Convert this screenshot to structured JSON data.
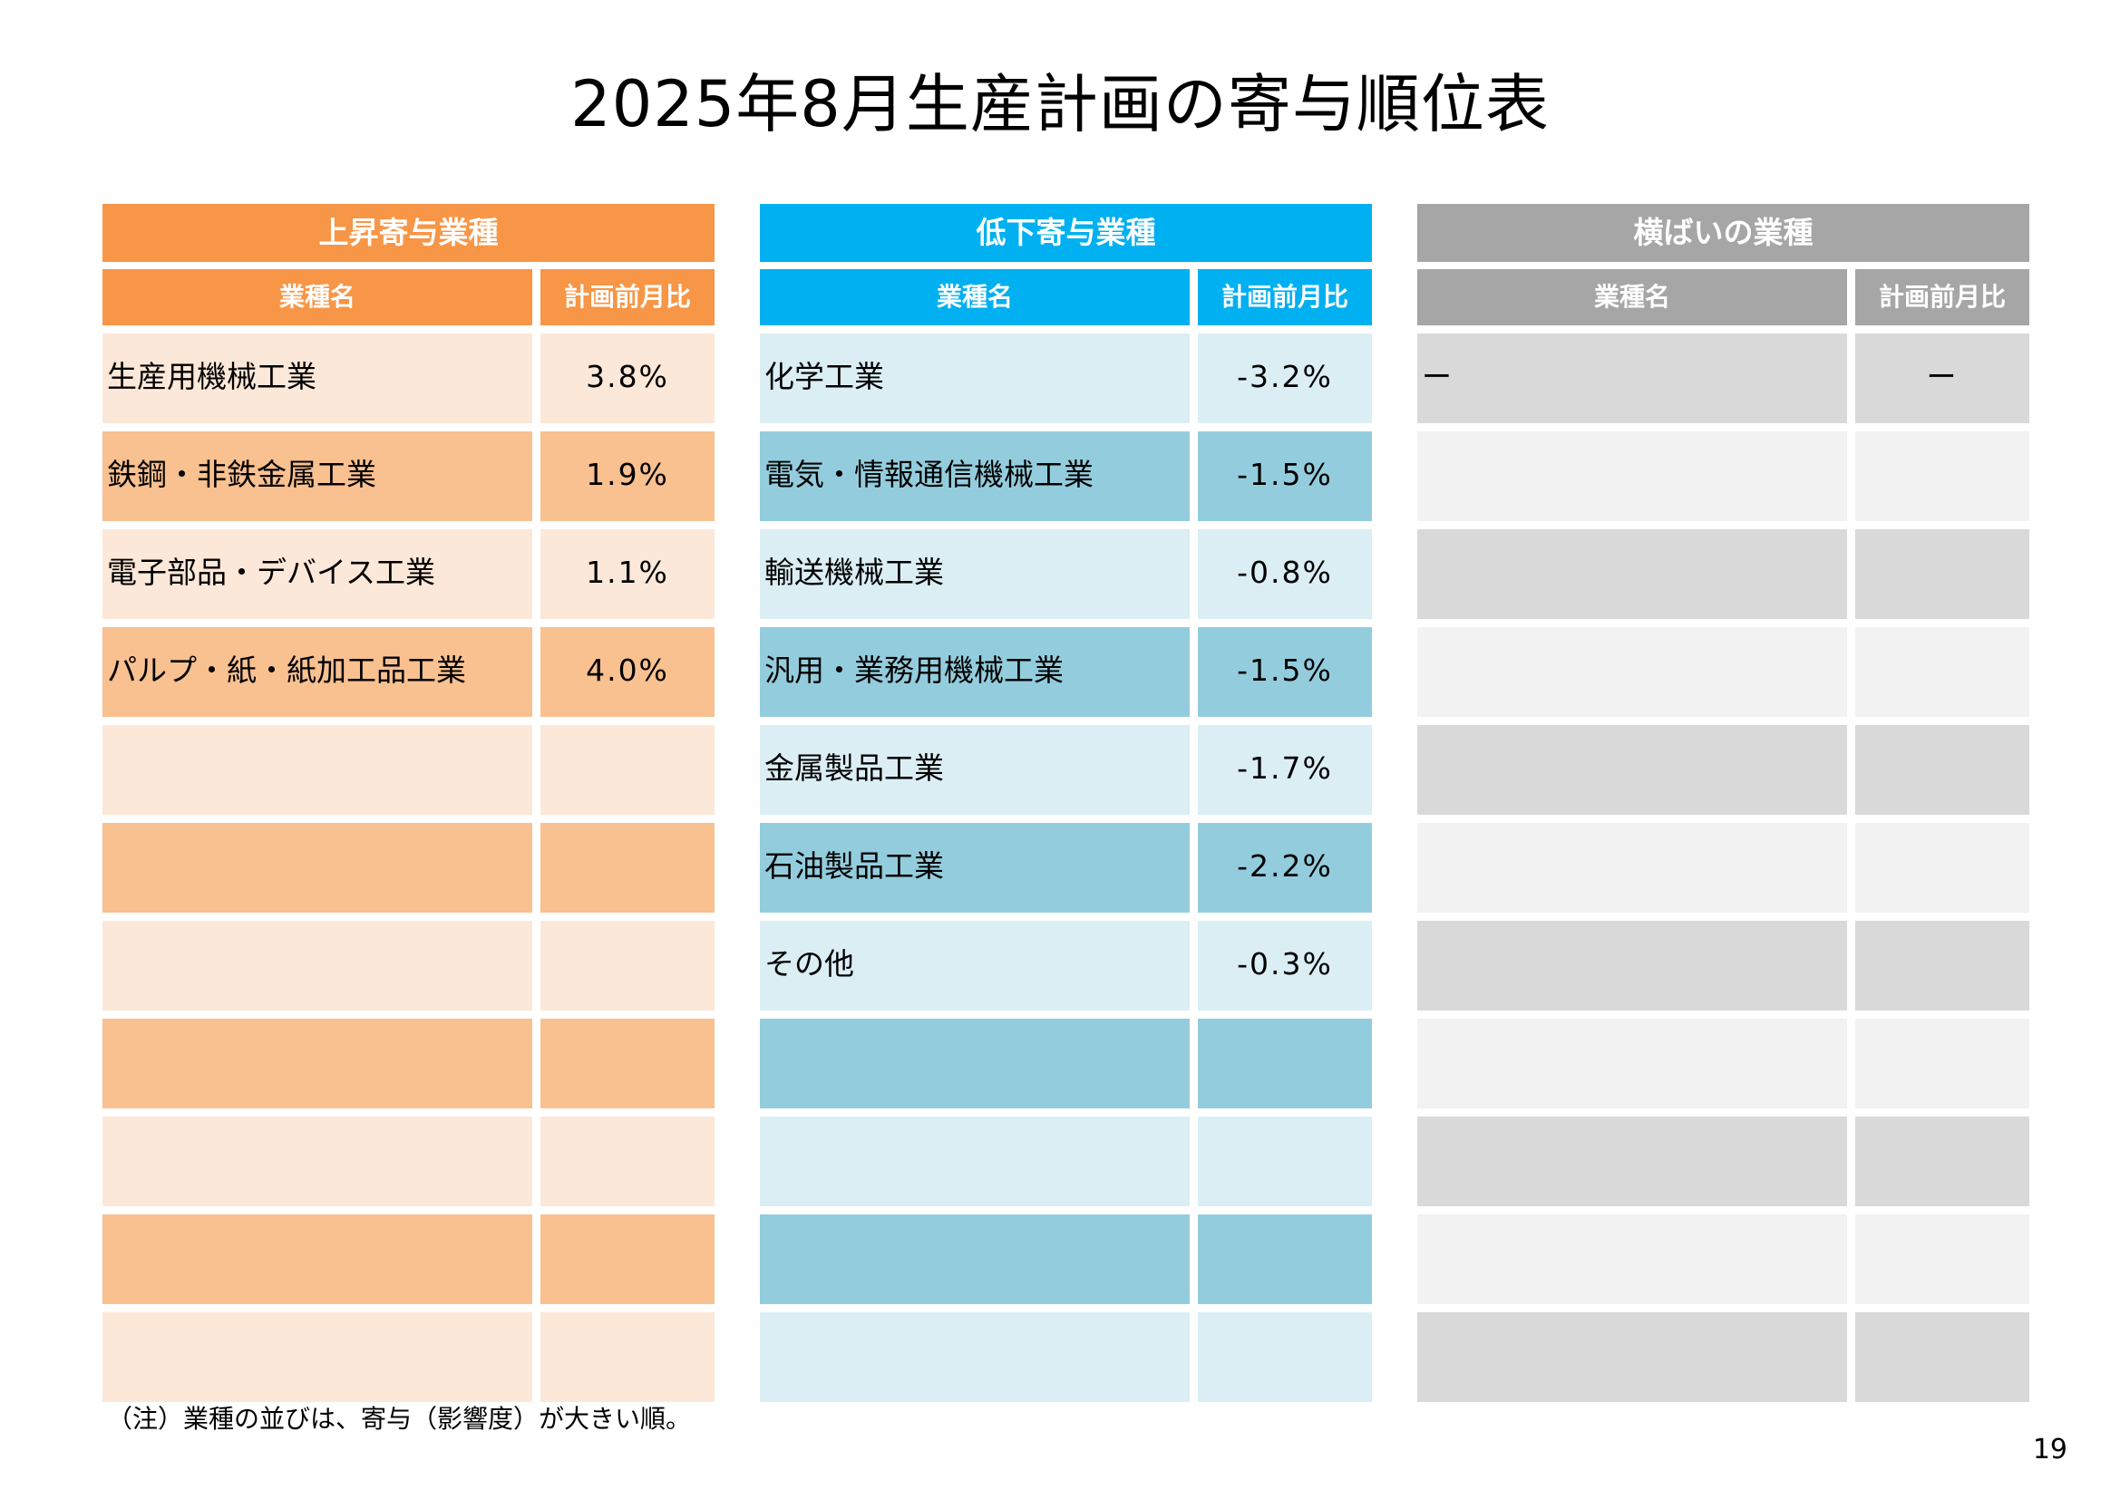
{
  "title": "2025年8月生産計画の寄与順位表",
  "columns": {
    "name": "業種名",
    "value": "計画前月比"
  },
  "panels": {
    "up": {
      "header": "上昇寄与業種",
      "rows": [
        {
          "name": "生産用機械工業",
          "value": "3.8%"
        },
        {
          "name": "鉄鋼・非鉄金属工業",
          "value": "1.9%"
        },
        {
          "name": "電子部品・デバイス工業",
          "value": "1.1%"
        },
        {
          "name": "パルプ・紙・紙加工品工業",
          "value": "4.0%"
        },
        {
          "name": "",
          "value": ""
        },
        {
          "name": "",
          "value": ""
        },
        {
          "name": "",
          "value": ""
        },
        {
          "name": "",
          "value": ""
        },
        {
          "name": "",
          "value": ""
        },
        {
          "name": "",
          "value": ""
        },
        {
          "name": "",
          "value": ""
        }
      ]
    },
    "down": {
      "header": "低下寄与業種",
      "rows": [
        {
          "name": "化学工業",
          "value": "-3.2%"
        },
        {
          "name": "電気・情報通信機械工業",
          "value": "-1.5%"
        },
        {
          "name": "輸送機械工業",
          "value": "-0.8%"
        },
        {
          "name": "汎用・業務用機械工業",
          "value": "-1.5%"
        },
        {
          "name": "金属製品工業",
          "value": "-1.7%"
        },
        {
          "name": "石油製品工業",
          "value": "-2.2%"
        },
        {
          "name": "その他",
          "value": "-0.3%"
        },
        {
          "name": "",
          "value": ""
        },
        {
          "name": "",
          "value": ""
        },
        {
          "name": "",
          "value": ""
        },
        {
          "name": "",
          "value": ""
        }
      ]
    },
    "flat": {
      "header": "横ばいの業種",
      "rows": [
        {
          "name": "ー",
          "value": "ー"
        },
        {
          "name": "",
          "value": ""
        },
        {
          "name": "",
          "value": ""
        },
        {
          "name": "",
          "value": ""
        },
        {
          "name": "",
          "value": ""
        },
        {
          "name": "",
          "value": ""
        },
        {
          "name": "",
          "value": ""
        },
        {
          "name": "",
          "value": ""
        },
        {
          "name": "",
          "value": ""
        },
        {
          "name": "",
          "value": ""
        },
        {
          "name": "",
          "value": ""
        }
      ]
    }
  },
  "note": "（注）業種の並びは、寄与（影響度）が大きい順。",
  "page_number": "19",
  "colors": {
    "up_header": "#f79646",
    "up_light": "#fce8d8",
    "up_dark": "#f9c090",
    "down_header": "#00b0f0",
    "down_light": "#dbeef4",
    "down_dark": "#93cddd",
    "flat_header": "#a6a6a6",
    "flat_light": "#f2f2f2",
    "flat_dark": "#d9d9d9"
  }
}
